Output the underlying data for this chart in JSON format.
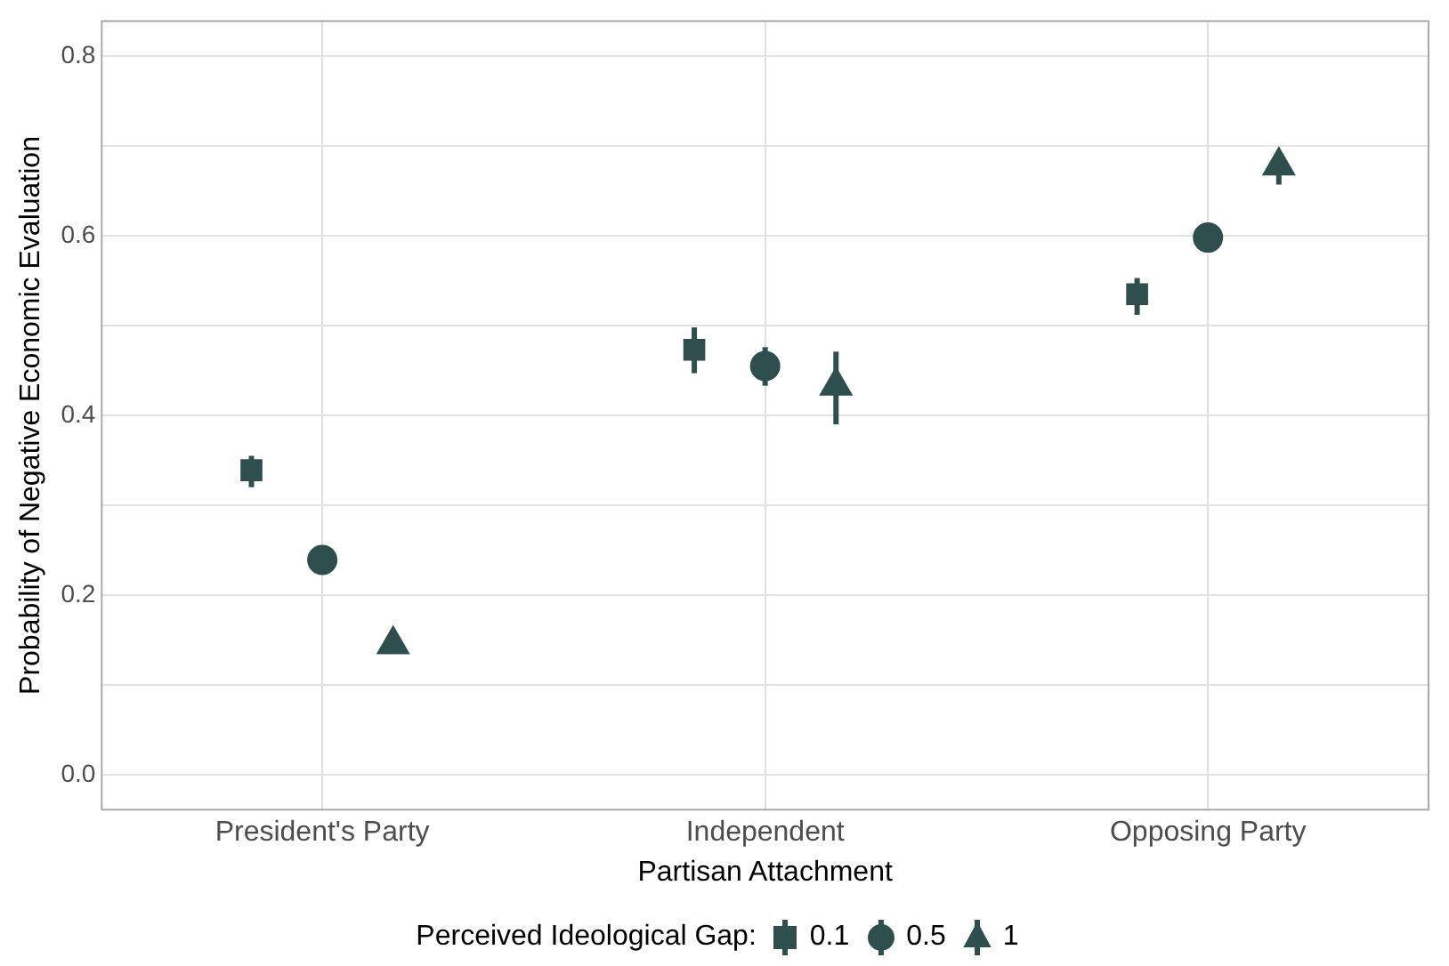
{
  "chart_data": {
    "type": "scatter",
    "xlabel": "Partisan Attachment",
    "ylabel": "Probability of Negative Economic Evaluation",
    "legend_title": "Perceived Ideological Gap:",
    "categories": [
      "President's Party",
      "Independent",
      "Opposing Party"
    ],
    "series": [
      {
        "name": "0.1",
        "color": "#2f4f4f",
        "marker": "square",
        "values": [
          0.339,
          0.473,
          0.535
        ],
        "errors": [
          [
            0.32,
            0.355
          ],
          [
            0.447,
            0.498
          ],
          [
            0.512,
            0.553
          ]
        ]
      },
      {
        "name": "0.5",
        "color": "#2f4f4f",
        "marker": "circle",
        "values": [
          0.239,
          0.455,
          0.598
        ],
        "errors": [
          null,
          [
            0.433,
            0.476
          ],
          null
        ]
      },
      {
        "name": "1",
        "color": "#2f4f4f",
        "marker": "triangle",
        "values": [
          0.145,
          0.433,
          0.678
        ],
        "errors": [
          null,
          [
            0.39,
            0.471
          ],
          [
            0.657,
            0.69
          ]
        ]
      }
    ],
    "ylim": [
      -0.04,
      0.84
    ],
    "yticks": [
      {
        "value": 0,
        "label": "0.0"
      },
      {
        "value": 0.1,
        "label": null
      },
      {
        "value": 0.2,
        "label": "0.2"
      },
      {
        "value": 0.3,
        "label": null
      },
      {
        "value": 0.4,
        "label": "0.4"
      },
      {
        "value": 0.5,
        "label": null
      },
      {
        "value": 0.6,
        "label": "0.6"
      },
      {
        "value": 0.7,
        "label": null
      },
      {
        "value": 0.8,
        "label": "0.8"
      }
    ],
    "grid": true,
    "legend": "bottom"
  }
}
